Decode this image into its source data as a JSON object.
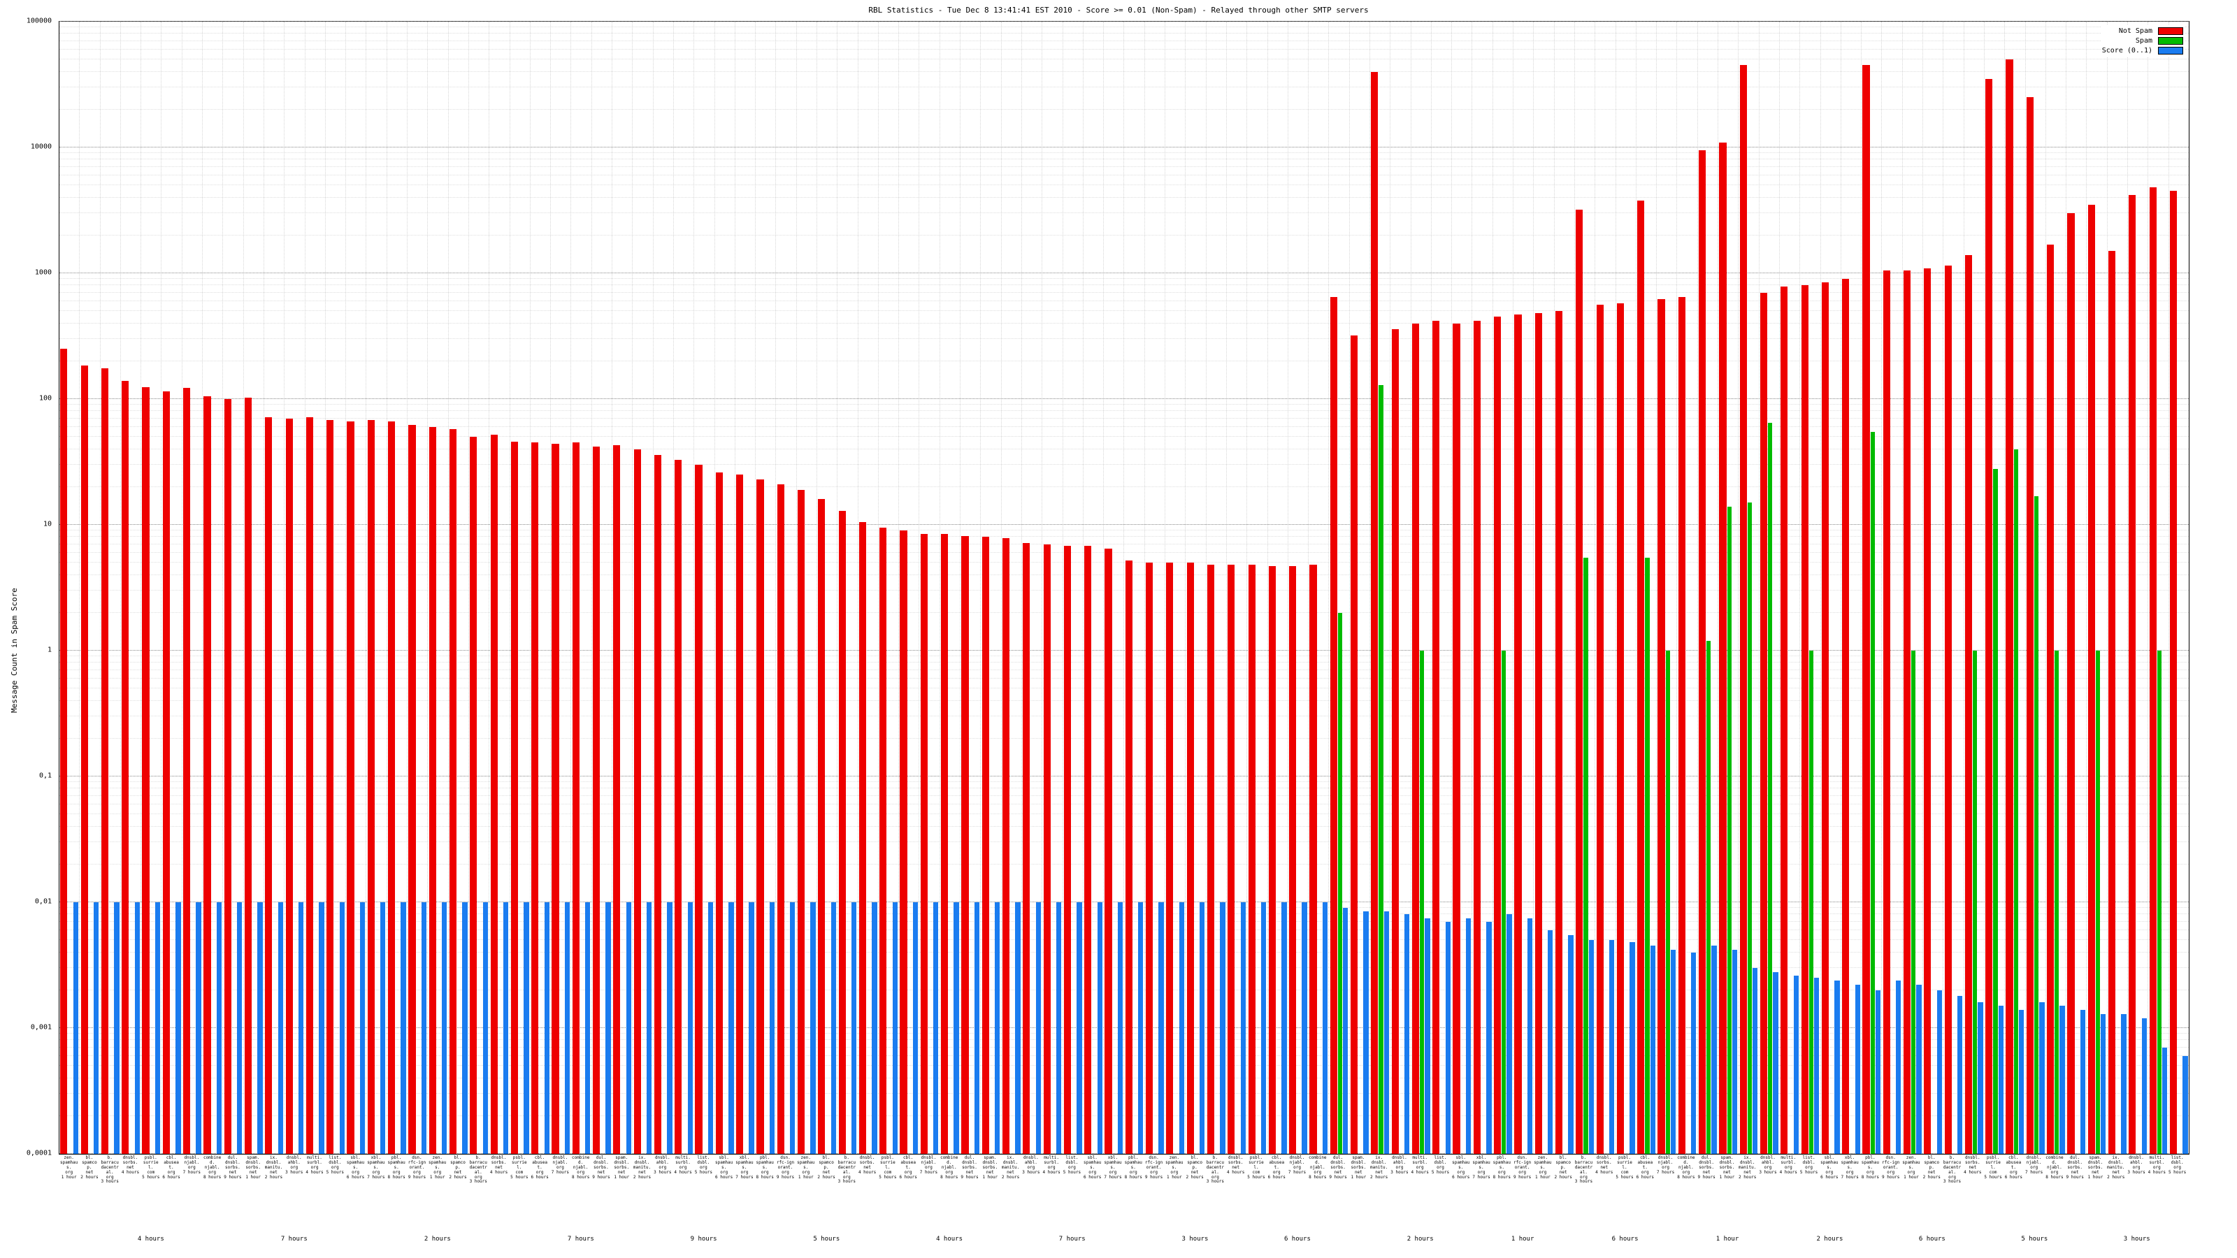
{
  "chart_data": {
    "type": "bar",
    "title": "RBL Statistics - Tue Dec  8 13:41:41 EST 2010 - Score >= 0.01 (Non-Spam) - Relayed through other SMTP servers",
    "ylabel": "Message Count in Spam Score",
    "log_scale": true,
    "ylim": [
      0.0001,
      100000
    ],
    "yticks": [
      "100000",
      "10000",
      "1000",
      "100",
      "10",
      "1",
      "0,1",
      "0,01",
      "0,001",
      "0,0001"
    ],
    "grid": true,
    "legend_position": "top-right",
    "legend": [
      {
        "label": "Not Spam",
        "color": "#ee0000"
      },
      {
        "label": "Spam",
        "color": "#00bb00"
      },
      {
        "label": "Score (0..1)",
        "color": "#1a7cf0"
      }
    ],
    "categories": [
      "zen.spamhaus.org 1 hour",
      "bl.spamcop.net 2 hours",
      "b.barracudacentral.org 3 hours",
      "dnsbl.sorbs.net 4 hours",
      "psbl.surriel.com 5 hours",
      "cbl.abuseat.org 6 hours",
      "dnsbl.njabl.org 7 hours",
      "combined.njabl.org 8 hours",
      "dul.dnsbl.sorbs.net 9 hours",
      "spam.dnsbl.sorbs.net 1 hour",
      "ix.dnsbl.manitu.net 2 hours",
      "dnsbl.ahbl.org 3 hours",
      "multi.surbl.org 4 hours",
      "list.dsbl.org 5 hours",
      "sbl.spamhaus.org 6 hours",
      "xbl.spamhaus.org 7 hours",
      "pbl.spamhaus.org 8 hours",
      "dsn.rfc-ignorant.org 9 hours",
      "zen.spamhaus.org 1 hour",
      "bl.spamcop.net 2 hours",
      "b.barracudacentral.org 3 hours",
      "dnsbl.sorbs.net 4 hours",
      "psbl.surriel.com 5 hours",
      "cbl.abuseat.org 6 hours",
      "dnsbl.njabl.org 7 hours",
      "combined.njabl.org 8 hours",
      "dul.dnsbl.sorbs.net 9 hours",
      "spam.dnsbl.sorbs.net 1 hour",
      "ix.dnsbl.manitu.net 2 hours",
      "dnsbl.ahbl.org 3 hours",
      "multi.surbl.org 4 hours",
      "list.dsbl.org 5 hours",
      "sbl.spamhaus.org 6 hours",
      "xbl.spamhaus.org 7 hours",
      "pbl.spamhaus.org 8 hours",
      "dsn.rfc-ignorant.org 9 hours",
      "zen.spamhaus.org 1 hour",
      "bl.spamcop.net 2 hours",
      "b.barracudacentral.org 3 hours",
      "dnsbl.sorbs.net 4 hours",
      "psbl.surriel.com 5 hours",
      "cbl.abuseat.org 6 hours",
      "dnsbl.njabl.org 7 hours",
      "combined.njabl.org 8 hours",
      "dul.dnsbl.sorbs.net 9 hours",
      "spam.dnsbl.sorbs.net 1 hour",
      "ix.dnsbl.manitu.net 2 hours",
      "dnsbl.ahbl.org 3 hours",
      "multi.surbl.org 4 hours",
      "list.dsbl.org 5 hours",
      "sbl.spamhaus.org 6 hours",
      "xbl.spamhaus.org 7 hours",
      "pbl.spamhaus.org 8 hours",
      "dsn.rfc-ignorant.org 9 hours",
      "zen.spamhaus.org 1 hour",
      "bl.spamcop.net 2 hours",
      "b.barracudacentral.org 3 hours",
      "dnsbl.sorbs.net 4 hours",
      "psbl.surriel.com 5 hours",
      "cbl.abuseat.org 6 hours",
      "dnsbl.njabl.org 7 hours",
      "combined.njabl.org 8 hours",
      "dul.dnsbl.sorbs.net 9 hours",
      "spam.dnsbl.sorbs.net 1 hour",
      "ix.dnsbl.manitu.net 2 hours",
      "dnsbl.ahbl.org 3 hours",
      "multi.surbl.org 4 hours",
      "list.dsbl.org 5 hours",
      "sbl.spamhaus.org 6 hours",
      "xbl.spamhaus.org 7 hours",
      "pbl.spamhaus.org 8 hours",
      "dsn.rfc-ignorant.org 9 hours",
      "zen.spamhaus.org 1 hour",
      "bl.spamcop.net 2 hours",
      "b.barracudacentral.org 3 hours",
      "dnsbl.sorbs.net 4 hours",
      "psbl.surriel.com 5 hours",
      "cbl.abuseat.org 6 hours",
      "dnsbl.njabl.org 7 hours",
      "combined.njabl.org 8 hours",
      "dul.dnsbl.sorbs.net 9 hours",
      "spam.dnsbl.sorbs.net 1 hour",
      "ix.dnsbl.manitu.net 2 hours",
      "dnsbl.ahbl.org 3 hours",
      "multi.surbl.org 4 hours",
      "list.dsbl.org 5 hours",
      "sbl.spamhaus.org 6 hours",
      "xbl.spamhaus.org 7 hours",
      "pbl.spamhaus.org 8 hours",
      "dsn.rfc-ignorant.org 9 hours",
      "zen.spamhaus.org 1 hour",
      "bl.spamcop.net 2 hours",
      "b.barracudacentral.org 3 hours",
      "dnsbl.sorbs.net 4 hours",
      "psbl.surriel.com 5 hours",
      "cbl.abuseat.org 6 hours",
      "dnsbl.njabl.org 7 hours",
      "combined.njabl.org 8 hours",
      "dul.dnsbl.sorbs.net 9 hours",
      "spam.dnsbl.sorbs.net 1 hour",
      "ix.dnsbl.manitu.net 2 hours",
      "dnsbl.ahbl.org 3 hours",
      "multi.surbl.org 4 hours",
      "list.dsbl.org 5 hours"
    ],
    "series": [
      {
        "name": "Not Spam",
        "color": "#ee0000",
        "values": [
          250,
          185,
          175,
          140,
          125,
          115,
          122,
          105,
          100,
          103,
          72,
          70,
          72,
          68,
          66,
          68,
          66,
          62,
          60,
          58,
          50,
          52,
          46,
          45,
          44,
          45,
          42,
          43,
          40,
          36,
          33,
          30,
          26,
          25,
          23,
          21,
          19,
          16,
          13,
          10.5,
          9.5,
          9,
          8.5,
          8.5,
          8.2,
          8,
          7.8,
          7.2,
          7,
          6.8,
          6.8,
          6.5,
          5.2,
          5,
          5,
          5,
          4.8,
          4.8,
          4.8,
          4.7,
          4.7,
          4.8,
          650,
          320,
          40000,
          360,
          400,
          420,
          400,
          420,
          450,
          470,
          480,
          500,
          3200,
          560,
          580,
          3800,
          620,
          650,
          9500,
          11000,
          45000,
          700,
          780,
          800,
          850,
          900,
          45000,
          1050,
          1050,
          1100,
          1150,
          1400,
          35000,
          50000,
          25000,
          1700,
          3000,
          3500,
          1500,
          4200,
          4800,
          4500
        ]
      },
      {
        "name": "Spam",
        "color": "#00bb00",
        "values": [
          null,
          null,
          null,
          null,
          null,
          null,
          null,
          null,
          null,
          null,
          null,
          null,
          null,
          null,
          null,
          null,
          null,
          null,
          null,
          null,
          null,
          null,
          null,
          null,
          null,
          null,
          null,
          null,
          null,
          null,
          null,
          null,
          null,
          null,
          null,
          null,
          null,
          null,
          null,
          null,
          null,
          null,
          null,
          null,
          null,
          null,
          null,
          null,
          null,
          null,
          null,
          null,
          null,
          null,
          null,
          null,
          null,
          null,
          null,
          null,
          null,
          null,
          2,
          null,
          130,
          null,
          1,
          null,
          null,
          null,
          1,
          null,
          null,
          null,
          5.5,
          null,
          null,
          5.5,
          1,
          null,
          1.2,
          14,
          15,
          65,
          null,
          1,
          null,
          null,
          55,
          null,
          1,
          null,
          null,
          1,
          28,
          40,
          17,
          1,
          null,
          1,
          null,
          null,
          1,
          null
        ]
      },
      {
        "name": "Score (0..1)",
        "color": "#1a7cf0",
        "values": [
          0.01,
          0.01,
          0.01,
          0.01,
          0.01,
          0.01,
          0.01,
          0.01,
          0.01,
          0.01,
          0.01,
          0.01,
          0.01,
          0.01,
          0.01,
          0.01,
          0.01,
          0.01,
          0.01,
          0.01,
          0.01,
          0.01,
          0.01,
          0.01,
          0.01,
          0.01,
          0.01,
          0.01,
          0.01,
          0.01,
          0.01,
          0.01,
          0.01,
          0.01,
          0.01,
          0.01,
          0.01,
          0.01,
          0.01,
          0.01,
          0.01,
          0.01,
          0.01,
          0.01,
          0.01,
          0.01,
          0.01,
          0.01,
          0.01,
          0.01,
          0.01,
          0.01,
          0.01,
          0.01,
          0.01,
          0.01,
          0.01,
          0.01,
          0.01,
          0.01,
          0.01,
          0.01,
          0.009,
          0.0085,
          0.0085,
          0.008,
          0.0075,
          0.007,
          0.0075,
          0.007,
          0.008,
          0.0075,
          0.006,
          0.0055,
          0.005,
          0.005,
          0.0048,
          0.0045,
          0.0042,
          0.004,
          0.0045,
          0.0042,
          0.003,
          0.0028,
          0.0026,
          0.0025,
          0.0024,
          0.0022,
          0.002,
          0.0024,
          0.0022,
          0.002,
          0.0018,
          0.0016,
          0.0015,
          0.0014,
          0.0016,
          0.0015,
          0.0014,
          0.0013,
          0.0013,
          0.0012,
          0.0007,
          0.0006
        ]
      }
    ],
    "x_axis_secondary": [
      {
        "index": 4,
        "label": "4 hours"
      },
      {
        "index": 11,
        "label": "7 hours"
      },
      {
        "index": 18,
        "label": "2 hours"
      },
      {
        "index": 25,
        "label": "7 hours"
      },
      {
        "index": 31,
        "label": "9 hours"
      },
      {
        "index": 37,
        "label": "5 hours"
      },
      {
        "index": 43,
        "label": "4 hours"
      },
      {
        "index": 49,
        "label": "7 hours"
      },
      {
        "index": 55,
        "label": "3 hours"
      },
      {
        "index": 60,
        "label": "6 hours"
      },
      {
        "index": 66,
        "label": "2 hours"
      },
      {
        "index": 71,
        "label": "1 hour"
      },
      {
        "index": 76,
        "label": "6 hours"
      },
      {
        "index": 81,
        "label": "1 hour"
      },
      {
        "index": 86,
        "label": "2 hours"
      },
      {
        "index": 91,
        "label": "6 hours"
      },
      {
        "index": 96,
        "label": "5 hours"
      },
      {
        "index": 101,
        "label": "3 hours"
      }
    ]
  }
}
